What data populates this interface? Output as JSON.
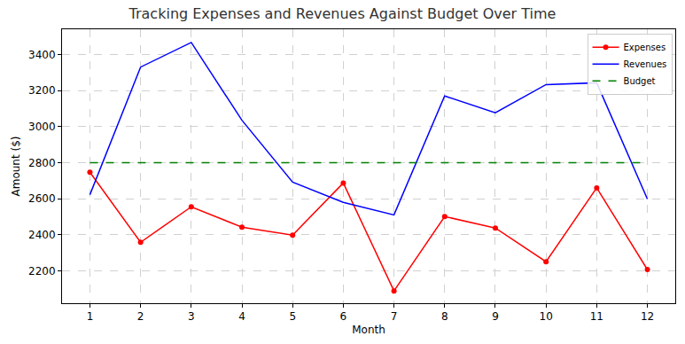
{
  "chart_data": {
    "type": "line",
    "title": "Tracking Expenses and Revenues Against Budget Over Time",
    "x_label": "Month",
    "y_label": "Amount ($)",
    "x": [
      1,
      2,
      3,
      4,
      5,
      6,
      7,
      8,
      9,
      10,
      11,
      12
    ],
    "series": [
      {
        "name": "Expenses",
        "color": "#ff0000",
        "marker": "circle",
        "line_style": "solid",
        "values": [
          2747,
          2358,
          2555,
          2442,
          2398,
          2687,
          2088,
          2501,
          2437,
          2250,
          2660,
          2207
        ]
      },
      {
        "name": "Revenues",
        "color": "#0000ff",
        "line_style": "solid",
        "values": [
          2622,
          3330,
          3467,
          3035,
          2692,
          2580,
          2510,
          3170,
          3077,
          3233,
          3243,
          2598
        ]
      },
      {
        "name": "Budget",
        "color": "#008000",
        "line_style": "dashed",
        "values": [
          2800,
          2800,
          2800,
          2800,
          2800,
          2800,
          2800,
          2800,
          2800,
          2800,
          2800,
          2800
        ]
      }
    ],
    "xlim": [
      0.45,
      12.55
    ],
    "xticks": [
      1,
      2,
      3,
      4,
      5,
      6,
      7,
      8,
      9,
      10,
      11,
      12
    ],
    "ylim": [
      2020,
      3540
    ],
    "yticks": [
      2200,
      2400,
      2600,
      2800,
      3000,
      3200,
      3400
    ],
    "grid": true,
    "legend": "upper right"
  }
}
